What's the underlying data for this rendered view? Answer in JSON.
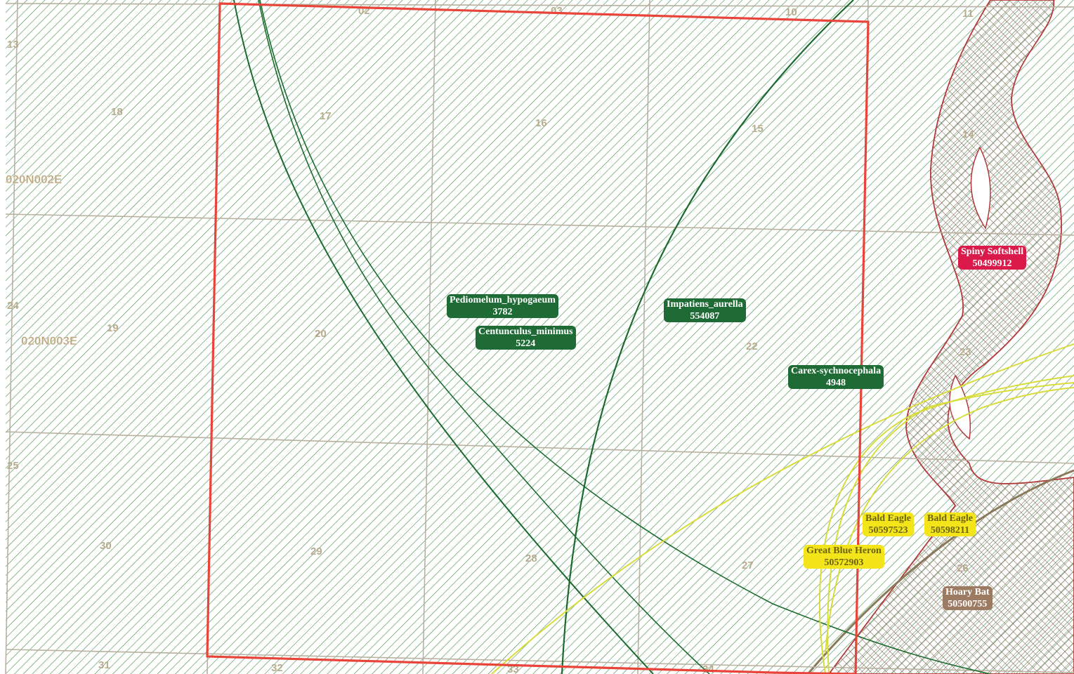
{
  "colors": {
    "hatch_green": "#2e7d3a",
    "grid_line": "#b8b0a0",
    "study_area": "#e8443a",
    "plant_arc": "#1a6b2e",
    "bird_arc": "#d8dc3a",
    "river": "#b23a3a",
    "river_fill": "#8a6a58"
  },
  "townships": [
    {
      "label": "020N002E"
    },
    {
      "label": "020N003E"
    }
  ],
  "sections": [
    "02",
    "03",
    "10",
    "11",
    "13",
    "18",
    "17",
    "16",
    "15",
    "14",
    "24",
    "19",
    "20",
    "22",
    "23",
    "25",
    "30",
    "29",
    "28",
    "27",
    "26",
    "31",
    "32",
    "33",
    "34"
  ],
  "occurrences": [
    {
      "name": "Pediomelum_hypogaeum",
      "id": "3782",
      "group": "plant"
    },
    {
      "name": "Centunculus_minimus",
      "id": "5224",
      "group": "plant"
    },
    {
      "name": "Impatiens_aurella",
      "id": "554087",
      "group": "plant"
    },
    {
      "name": "Carex-sychnocephala",
      "id": "4948",
      "group": "plant"
    },
    {
      "name": "Spiny Softshell",
      "id": "50499912",
      "group": "reptile"
    },
    {
      "name": "Bald Eagle",
      "id": "50597523",
      "group": "bird"
    },
    {
      "name": "Bald Eagle",
      "id": "50598211",
      "group": "bird"
    },
    {
      "name": "Great Blue Heron",
      "id": "50572903",
      "group": "bird"
    },
    {
      "name": "Hoary Bat",
      "id": "50500755",
      "group": "mammal"
    }
  ]
}
